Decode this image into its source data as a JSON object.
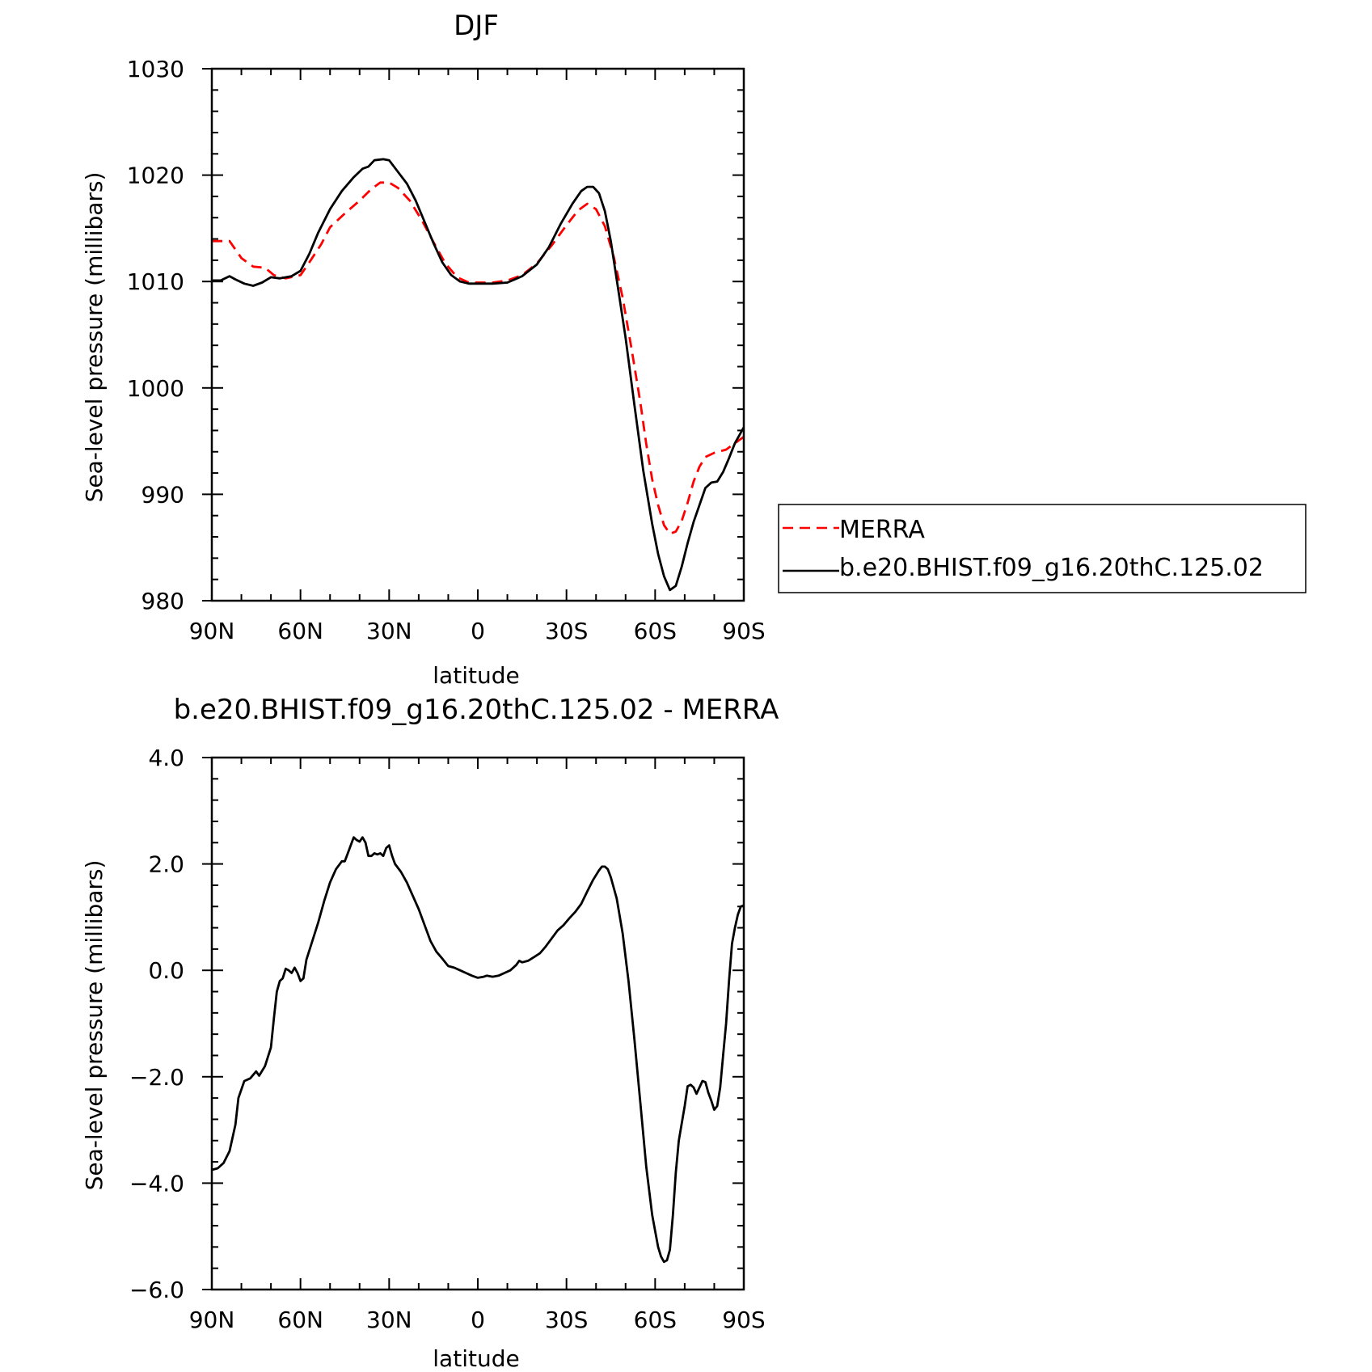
{
  "chart_data": [
    {
      "type": "line",
      "title": "DJF",
      "xlabel": "latitude",
      "ylabel": "Sea-level pressure (millibars)",
      "x_ticks": [
        90,
        60,
        30,
        0,
        -30,
        -60,
        -90
      ],
      "x_tick_labels": [
        "90N",
        "60N",
        "30N",
        "0",
        "30S",
        "60S",
        "90S"
      ],
      "xlim": [
        90,
        -90
      ],
      "ylim": [
        980,
        1030
      ],
      "y_ticks": [
        980,
        990,
        1000,
        1010,
        1020,
        1030
      ],
      "y_tick_labels": [
        "980",
        "990",
        "1000",
        "1010",
        "1020",
        "1030"
      ],
      "legend_position": "right",
      "series": [
        {
          "name": "MERRA",
          "color": "#ff0000",
          "dash": "dashed",
          "points": [
            [
              90,
              1013.8
            ],
            [
              84,
              1013.8
            ],
            [
              80,
              1012.2
            ],
            [
              76,
              1011.4
            ],
            [
              72,
              1011.3
            ],
            [
              69,
              1010.6
            ],
            [
              65,
              1010.3
            ],
            [
              60,
              1010.6
            ],
            [
              57,
              1011.8
            ],
            [
              53,
              1013.5
            ],
            [
              50,
              1015.1
            ],
            [
              45,
              1016.4
            ],
            [
              40,
              1017.6
            ],
            [
              36,
              1018.7
            ],
            [
              33,
              1019.3
            ],
            [
              30,
              1019.3
            ],
            [
              27,
              1018.8
            ],
            [
              23,
              1017.6
            ],
            [
              19,
              1015.8
            ],
            [
              15,
              1013.7
            ],
            [
              11,
              1011.7
            ],
            [
              7,
              1010.4
            ],
            [
              3,
              1009.9
            ],
            [
              0,
              1009.9
            ],
            [
              -5,
              1009.9
            ],
            [
              -10,
              1010.1
            ],
            [
              -15,
              1010.6
            ],
            [
              -20,
              1011.7
            ],
            [
              -25,
              1013.4
            ],
            [
              -30,
              1015.3
            ],
            [
              -34,
              1016.7
            ],
            [
              -37,
              1017.3
            ],
            [
              -40,
              1016.8
            ],
            [
              -43,
              1015.2
            ],
            [
              -46,
              1012.3
            ],
            [
              -49,
              1008.5
            ],
            [
              -52,
              1003.7
            ],
            [
              -55,
              998.6
            ],
            [
              -57,
              994.7
            ],
            [
              -59,
              991.4
            ],
            [
              -61,
              989.0
            ],
            [
              -63,
              987.1
            ],
            [
              -65,
              986.3
            ],
            [
              -67,
              986.5
            ],
            [
              -69,
              987.5
            ],
            [
              -71,
              989.2
            ],
            [
              -73,
              991.2
            ],
            [
              -75,
              992.6
            ],
            [
              -77,
              993.5
            ],
            [
              -80,
              993.9
            ],
            [
              -84,
              994.2
            ],
            [
              -87,
              994.8
            ],
            [
              -90,
              995.4
            ]
          ]
        },
        {
          "name": "b.e20.BHIST.f09_g16.20thC.125.02",
          "color": "#000000",
          "dash": "solid",
          "points": [
            [
              90,
              1010.1
            ],
            [
              87,
              1010.1
            ],
            [
              84,
              1010.5
            ],
            [
              82,
              1010.2
            ],
            [
              79,
              1009.8
            ],
            [
              76,
              1009.6
            ],
            [
              73,
              1009.9
            ],
            [
              70,
              1010.4
            ],
            [
              67,
              1010.3
            ],
            [
              63,
              1010.5
            ],
            [
              60,
              1011.0
            ],
            [
              57,
              1012.6
            ],
            [
              54,
              1014.6
            ],
            [
              50,
              1016.8
            ],
            [
              46,
              1018.5
            ],
            [
              42,
              1019.8
            ],
            [
              39,
              1020.6
            ],
            [
              37,
              1020.8
            ],
            [
              35,
              1021.4
            ],
            [
              32,
              1021.5
            ],
            [
              30,
              1021.4
            ],
            [
              27,
              1020.3
            ],
            [
              24,
              1019.2
            ],
            [
              21,
              1017.6
            ],
            [
              18,
              1015.6
            ],
            [
              15,
              1013.6
            ],
            [
              12,
              1011.8
            ],
            [
              9,
              1010.6
            ],
            [
              6,
              1010.0
            ],
            [
              3,
              1009.8
            ],
            [
              0,
              1009.8
            ],
            [
              -5,
              1009.8
            ],
            [
              -10,
              1009.9
            ],
            [
              -15,
              1010.5
            ],
            [
              -20,
              1011.6
            ],
            [
              -24,
              1013.2
            ],
            [
              -28,
              1015.4
            ],
            [
              -32,
              1017.3
            ],
            [
              -35,
              1018.5
            ],
            [
              -37,
              1018.9
            ],
            [
              -39,
              1018.9
            ],
            [
              -41,
              1018.3
            ],
            [
              -43,
              1016.6
            ],
            [
              -45,
              1013.8
            ],
            [
              -47,
              1010.2
            ],
            [
              -50,
              1004.7
            ],
            [
              -53,
              998.4
            ],
            [
              -56,
              992.2
            ],
            [
              -59,
              987.2
            ],
            [
              -61,
              984.4
            ],
            [
              -63,
              982.3
            ],
            [
              -65,
              981.0
            ],
            [
              -67,
              981.4
            ],
            [
              -69,
              983.2
            ],
            [
              -71,
              985.4
            ],
            [
              -73,
              987.4
            ],
            [
              -75,
              989.0
            ],
            [
              -77,
              990.6
            ],
            [
              -79,
              991.1
            ],
            [
              -81,
              991.2
            ],
            [
              -83,
              992.1
            ],
            [
              -85,
              993.4
            ],
            [
              -87,
              994.8
            ],
            [
              -90,
              996.3
            ]
          ]
        }
      ]
    },
    {
      "type": "line",
      "title": "b.e20.BHIST.f09_g16.20thC.125.02 - MERRA",
      "xlabel": "latitude",
      "ylabel": "Sea-level pressure (millibars)",
      "x_ticks": [
        90,
        60,
        30,
        0,
        -30,
        -60,
        -90
      ],
      "x_tick_labels": [
        "90N",
        "60N",
        "30N",
        "0",
        "30S",
        "60S",
        "90S"
      ],
      "xlim": [
        90,
        -90
      ],
      "ylim": [
        -6.0,
        4.0
      ],
      "y_ticks": [
        -6.0,
        -4.0,
        -2.0,
        0.0,
        2.0,
        4.0
      ],
      "y_tick_labels": [
        "−6.0",
        "−4.0",
        "−2.0",
        "0.0",
        "2.0",
        "4.0"
      ],
      "series": [
        {
          "color": "#000000",
          "dash": "solid",
          "points": [
            [
              90,
              -3.75
            ],
            [
              88,
              -3.72
            ],
            [
              86,
              -3.62
            ],
            [
              84,
              -3.4
            ],
            [
              82,
              -2.9
            ],
            [
              81,
              -2.4
            ],
            [
              79,
              -2.08
            ],
            [
              77,
              -2.03
            ],
            [
              75,
              -1.9
            ],
            [
              74,
              -1.98
            ],
            [
              72,
              -1.8
            ],
            [
              70,
              -1.45
            ],
            [
              69,
              -0.9
            ],
            [
              68,
              -0.4
            ],
            [
              67,
              -0.2
            ],
            [
              66,
              -0.15
            ],
            [
              65,
              0.03
            ],
            [
              64,
              0.0
            ],
            [
              63,
              -0.05
            ],
            [
              62,
              0.05
            ],
            [
              61,
              -0.05
            ],
            [
              60,
              -0.2
            ],
            [
              59,
              -0.15
            ],
            [
              58,
              0.2
            ],
            [
              56,
              0.55
            ],
            [
              54,
              0.9
            ],
            [
              52,
              1.3
            ],
            [
              50,
              1.65
            ],
            [
              48,
              1.9
            ],
            [
              46,
              2.05
            ],
            [
              45,
              2.05
            ],
            [
              44,
              2.2
            ],
            [
              42,
              2.5
            ],
            [
              41,
              2.45
            ],
            [
              40,
              2.42
            ],
            [
              39,
              2.5
            ],
            [
              38,
              2.4
            ],
            [
              37,
              2.15
            ],
            [
              36,
              2.15
            ],
            [
              35,
              2.2
            ],
            [
              34,
              2.18
            ],
            [
              33,
              2.2
            ],
            [
              32,
              2.15
            ],
            [
              31,
              2.3
            ],
            [
              30,
              2.35
            ],
            [
              29,
              2.15
            ],
            [
              28,
              2.0
            ],
            [
              26,
              1.85
            ],
            [
              24,
              1.65
            ],
            [
              22,
              1.4
            ],
            [
              20,
              1.15
            ],
            [
              18,
              0.85
            ],
            [
              16,
              0.55
            ],
            [
              14,
              0.35
            ],
            [
              12,
              0.22
            ],
            [
              10,
              0.08
            ],
            [
              8,
              0.05
            ],
            [
              6,
              0.0
            ],
            [
              4,
              -0.05
            ],
            [
              2,
              -0.1
            ],
            [
              0,
              -0.14
            ],
            [
              -2,
              -0.12
            ],
            [
              -3,
              -0.1
            ],
            [
              -5,
              -0.12
            ],
            [
              -7,
              -0.1
            ],
            [
              -9,
              -0.05
            ],
            [
              -11,
              0.0
            ],
            [
              -13,
              0.1
            ],
            [
              -14,
              0.18
            ],
            [
              -15,
              0.15
            ],
            [
              -17,
              0.18
            ],
            [
              -19,
              0.25
            ],
            [
              -21,
              0.32
            ],
            [
              -23,
              0.45
            ],
            [
              -25,
              0.6
            ],
            [
              -27,
              0.75
            ],
            [
              -29,
              0.85
            ],
            [
              -31,
              0.98
            ],
            [
              -33,
              1.1
            ],
            [
              -35,
              1.25
            ],
            [
              -37,
              1.48
            ],
            [
              -39,
              1.7
            ],
            [
              -41,
              1.88
            ],
            [
              -42,
              1.95
            ],
            [
              -43,
              1.95
            ],
            [
              -44,
              1.9
            ],
            [
              -45,
              1.75
            ],
            [
              -47,
              1.35
            ],
            [
              -49,
              0.7
            ],
            [
              -51,
              -0.2
            ],
            [
              -53,
              -1.3
            ],
            [
              -55,
              -2.5
            ],
            [
              -57,
              -3.7
            ],
            [
              -59,
              -4.6
            ],
            [
              -61,
              -5.2
            ],
            [
              -62,
              -5.38
            ],
            [
              -63,
              -5.48
            ],
            [
              -64,
              -5.45
            ],
            [
              -65,
              -5.25
            ],
            [
              -66,
              -4.6
            ],
            [
              -67,
              -3.8
            ],
            [
              -68,
              -3.2
            ],
            [
              -70,
              -2.55
            ],
            [
              -71,
              -2.18
            ],
            [
              -72,
              -2.15
            ],
            [
              -73,
              -2.2
            ],
            [
              -74,
              -2.32
            ],
            [
              -75,
              -2.2
            ],
            [
              -76,
              -2.08
            ],
            [
              -77,
              -2.1
            ],
            [
              -78,
              -2.3
            ],
            [
              -79,
              -2.45
            ],
            [
              -80,
              -2.62
            ],
            [
              -81,
              -2.55
            ],
            [
              -82,
              -2.2
            ],
            [
              -83,
              -1.6
            ],
            [
              -84,
              -1.0
            ],
            [
              -85,
              -0.2
            ],
            [
              -86,
              0.5
            ],
            [
              -87,
              0.8
            ],
            [
              -88,
              1.05
            ],
            [
              -89,
              1.2
            ],
            [
              -90,
              1.22
            ]
          ]
        }
      ]
    }
  ]
}
